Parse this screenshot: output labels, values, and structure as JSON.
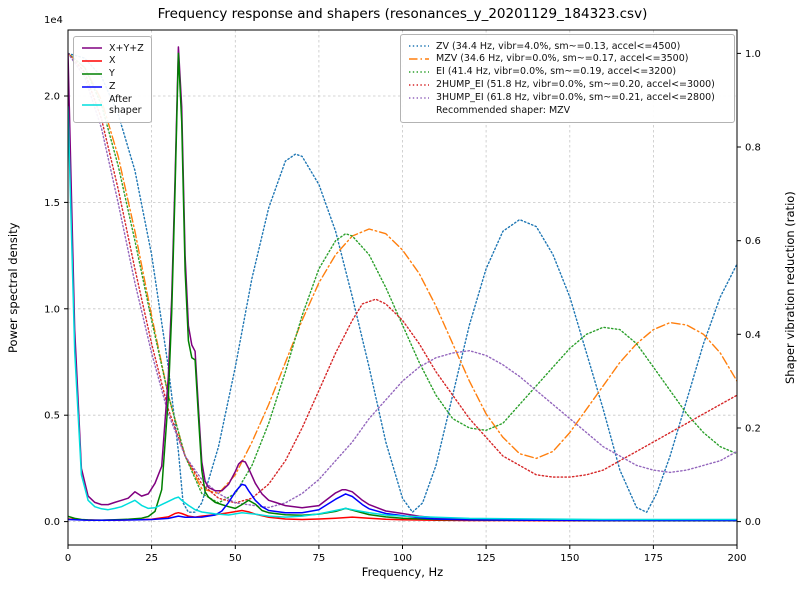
{
  "chart_data": {
    "type": "line",
    "title": "Frequency response and shapers (resonances_y_20201129_184323.csv)",
    "xlabel": "Frequency, Hz",
    "ylabel_left": "Power spectral density",
    "ylabel_right": "Shaper vibration reduction (ratio)",
    "offset_label": "1e4",
    "recommended_label": "Recommended shaper: MZV",
    "grid": true,
    "legend_positions": {
      "psd": "upper left",
      "shapers": "upper right"
    },
    "xlim": [
      0,
      200
    ],
    "ylim_left": [
      -1100,
      23100
    ],
    "ylim_right": [
      -0.05,
      1.05
    ],
    "x_ticks": [
      0,
      25,
      50,
      75,
      100,
      125,
      150,
      175,
      200
    ],
    "x_tick_labels": [
      "0",
      "25",
      "50",
      "75",
      "100",
      "125",
      "150",
      "175",
      "200"
    ],
    "y_ticks_left": [
      0,
      5000,
      10000,
      15000,
      20000
    ],
    "y_tick_labels_left": [
      "0.0",
      "0.5",
      "1.0",
      "1.5",
      "2.0"
    ],
    "y_ticks_right": [
      0,
      0.2,
      0.4,
      0.6,
      0.8,
      1.0
    ],
    "y_tick_labels_right": [
      "0.0",
      "0.2",
      "0.4",
      "0.6",
      "0.8",
      "1.0"
    ],
    "psd_series": [
      {
        "name": "X+Y+Z",
        "color": "#800080",
        "style": "solid",
        "x": [
          0,
          2,
          4,
          6,
          8,
          10,
          12,
          14,
          16,
          18,
          20,
          22,
          24,
          26,
          28,
          30,
          31,
          32,
          33,
          34,
          35,
          36,
          37,
          38,
          39,
          40,
          41,
          42,
          44,
          46,
          48,
          50,
          51,
          52,
          53,
          54,
          56,
          58,
          60,
          62,
          65,
          70,
          75,
          80,
          82,
          83,
          85,
          88,
          90,
          95,
          100,
          105,
          110,
          120,
          140,
          160,
          180,
          200
        ],
        "y": [
          22000,
          9000,
          2500,
          1200,
          900,
          800,
          800,
          900,
          1000,
          1100,
          1400,
          1200,
          1300,
          1800,
          2600,
          6800,
          10500,
          16000,
          22300,
          19500,
          12500,
          9200,
          8300,
          8000,
          5300,
          2800,
          1900,
          1600,
          1450,
          1450,
          1750,
          2350,
          2700,
          2850,
          2800,
          2500,
          1800,
          1300,
          1000,
          900,
          750,
          650,
          750,
          1350,
          1500,
          1500,
          1400,
          1000,
          800,
          500,
          380,
          250,
          180,
          120,
          90,
          70,
          60,
          60
        ]
      },
      {
        "name": "X",
        "color": "#ff0000",
        "style": "solid",
        "x": [
          0,
          5,
          10,
          15,
          20,
          25,
          30,
          32,
          33,
          34,
          36,
          38,
          40,
          44,
          48,
          50,
          52,
          54,
          56,
          60,
          65,
          70,
          75,
          80,
          85,
          90,
          95,
          100,
          110,
          120,
          140,
          160,
          180,
          200
        ],
        "y": [
          120,
          80,
          60,
          70,
          90,
          110,
          220,
          380,
          420,
          380,
          260,
          210,
          260,
          320,
          420,
          470,
          520,
          460,
          350,
          200,
          120,
          100,
          120,
          160,
          210,
          160,
          110,
          90,
          60,
          50,
          45,
          40,
          40,
          40
        ]
      },
      {
        "name": "Y",
        "color": "#008000",
        "style": "solid",
        "x": [
          0,
          2,
          4,
          6,
          8,
          10,
          14,
          18,
          22,
          24,
          26,
          28,
          30,
          31,
          32,
          33,
          34,
          35,
          36,
          37,
          38,
          39,
          40,
          41,
          42,
          44,
          46,
          48,
          50,
          52,
          54,
          56,
          58,
          60,
          65,
          70,
          75,
          80,
          83,
          85,
          90,
          95,
          100,
          110,
          120,
          140,
          160,
          180,
          200
        ],
        "y": [
          250,
          150,
          100,
          80,
          70,
          70,
          90,
          110,
          160,
          240,
          480,
          1500,
          5800,
          9800,
          15500,
          22000,
          18800,
          11800,
          8500,
          7700,
          7600,
          4900,
          2400,
          1400,
          1150,
          900,
          800,
          700,
          620,
          800,
          1000,
          820,
          520,
          420,
          320,
          300,
          350,
          480,
          620,
          540,
          330,
          220,
          160,
          100,
          80,
          60,
          50,
          45,
          45
        ]
      },
      {
        "name": "Z",
        "color": "#0000ff",
        "style": "solid",
        "x": [
          0,
          5,
          10,
          15,
          20,
          25,
          30,
          33,
          35,
          40,
          44,
          46,
          48,
          50,
          52,
          53,
          54,
          56,
          58,
          60,
          65,
          70,
          75,
          80,
          83,
          85,
          88,
          90,
          95,
          100,
          105,
          110,
          120,
          140,
          160,
          180,
          200
        ],
        "y": [
          100,
          70,
          60,
          70,
          80,
          100,
          150,
          260,
          200,
          210,
          310,
          500,
          900,
          1400,
          1750,
          1700,
          1450,
          1000,
          700,
          520,
          420,
          420,
          560,
          1050,
          1300,
          1180,
          800,
          600,
          380,
          280,
          180,
          120,
          80,
          60,
          50,
          50,
          50
        ]
      },
      {
        "name": "After shaper",
        "legend_label": "After\nshaper",
        "color": "#00dddd",
        "style": "solid",
        "x": [
          0,
          2,
          4,
          6,
          8,
          10,
          12,
          14,
          16,
          18,
          20,
          22,
          24,
          26,
          28,
          30,
          32,
          33,
          34,
          36,
          38,
          40,
          44,
          48,
          52,
          56,
          60,
          65,
          70,
          75,
          80,
          83,
          85,
          90,
          95,
          100,
          110,
          120,
          140,
          160,
          180,
          200
        ],
        "y": [
          19500,
          8000,
          2200,
          1000,
          700,
          600,
          560,
          620,
          700,
          850,
          1000,
          760,
          620,
          650,
          800,
          950,
          1100,
          1150,
          1000,
          760,
          560,
          450,
          360,
          310,
          420,
          350,
          260,
          210,
          260,
          360,
          520,
          620,
          560,
          420,
          310,
          260,
          200,
          150,
          120,
          100,
          100,
          100
        ]
      }
    ],
    "shaper_series": [
      {
        "name": "ZV (34.4 Hz, vibr=4.0%, sm~=0.13, accel<=4500)",
        "shaper": "ZV",
        "freq_hz": 34.4,
        "color": "#1f77b4",
        "style": "dotted",
        "x": [
          0,
          5,
          10,
          15,
          20,
          25,
          30,
          33,
          34.4,
          36,
          38,
          40,
          45,
          50,
          55,
          60,
          65,
          68,
          70,
          75,
          80,
          85,
          90,
          95,
          100,
          103,
          106,
          110,
          115,
          120,
          125,
          130,
          135,
          140,
          145,
          150,
          155,
          160,
          165,
          170,
          173,
          176,
          180,
          185,
          190,
          195,
          200
        ],
        "y": [
          1.0,
          0.99,
          0.95,
          0.87,
          0.75,
          0.57,
          0.33,
          0.15,
          0.04,
          0.02,
          0.02,
          0.04,
          0.16,
          0.33,
          0.52,
          0.67,
          0.77,
          0.785,
          0.78,
          0.72,
          0.62,
          0.48,
          0.33,
          0.17,
          0.05,
          0.02,
          0.04,
          0.12,
          0.27,
          0.42,
          0.54,
          0.62,
          0.645,
          0.63,
          0.57,
          0.48,
          0.36,
          0.24,
          0.11,
          0.03,
          0.02,
          0.06,
          0.14,
          0.26,
          0.38,
          0.48,
          0.55
        ]
      },
      {
        "name": "MZV (34.6 Hz, vibr=0.0%, sm~=0.17, accel<=3500)",
        "shaper": "MZV",
        "freq_hz": 34.6,
        "color": "#ff7f0e",
        "style": "dashdot",
        "x": [
          0,
          5,
          10,
          15,
          20,
          25,
          30,
          35,
          40,
          45,
          50,
          55,
          60,
          65,
          70,
          75,
          80,
          85,
          90,
          95,
          100,
          105,
          110,
          115,
          120,
          125,
          130,
          135,
          140,
          145,
          150,
          155,
          160,
          165,
          170,
          175,
          180,
          185,
          190,
          195,
          200
        ],
        "y": [
          1.0,
          0.97,
          0.9,
          0.78,
          0.62,
          0.44,
          0.27,
          0.14,
          0.07,
          0.06,
          0.1,
          0.17,
          0.25,
          0.34,
          0.43,
          0.51,
          0.57,
          0.61,
          0.625,
          0.615,
          0.58,
          0.53,
          0.46,
          0.38,
          0.3,
          0.23,
          0.18,
          0.145,
          0.135,
          0.15,
          0.19,
          0.24,
          0.29,
          0.34,
          0.38,
          0.41,
          0.425,
          0.42,
          0.4,
          0.36,
          0.3
        ]
      },
      {
        "name": "EI (41.4 Hz, vibr=0.0%, sm~=0.19, accel<=3200)",
        "shaper": "EI",
        "freq_hz": 41.4,
        "color": "#2ca02c",
        "style": "dotted",
        "x": [
          0,
          5,
          10,
          15,
          20,
          25,
          30,
          35,
          40,
          45,
          50,
          55,
          60,
          65,
          70,
          75,
          80,
          83,
          85,
          90,
          95,
          100,
          105,
          110,
          115,
          120,
          125,
          130,
          135,
          140,
          145,
          150,
          155,
          160,
          165,
          170,
          175,
          180,
          185,
          190,
          195,
          200
        ],
        "y": [
          1.0,
          0.97,
          0.89,
          0.76,
          0.6,
          0.43,
          0.27,
          0.14,
          0.06,
          0.04,
          0.06,
          0.12,
          0.21,
          0.32,
          0.44,
          0.54,
          0.6,
          0.615,
          0.61,
          0.57,
          0.5,
          0.42,
          0.34,
          0.27,
          0.22,
          0.2,
          0.195,
          0.21,
          0.25,
          0.29,
          0.33,
          0.37,
          0.4,
          0.415,
          0.41,
          0.38,
          0.33,
          0.28,
          0.23,
          0.19,
          0.16,
          0.145
        ]
      },
      {
        "name": "2HUMP_EI (51.8 Hz, vibr=0.0%, sm~=0.20, accel<=3000)",
        "shaper": "2HUMP_EI",
        "freq_hz": 51.8,
        "color": "#d62728",
        "style": "dotted",
        "x": [
          0,
          5,
          10,
          15,
          20,
          25,
          30,
          35,
          40,
          45,
          50,
          55,
          60,
          65,
          70,
          75,
          80,
          85,
          88,
          92,
          95,
          100,
          105,
          110,
          115,
          120,
          125,
          130,
          135,
          140,
          145,
          150,
          155,
          160,
          165,
          170,
          175,
          180,
          185,
          190,
          195,
          200
        ],
        "y": [
          1.0,
          0.96,
          0.86,
          0.71,
          0.54,
          0.38,
          0.24,
          0.14,
          0.08,
          0.05,
          0.04,
          0.05,
          0.08,
          0.13,
          0.2,
          0.28,
          0.36,
          0.43,
          0.465,
          0.475,
          0.465,
          0.43,
          0.38,
          0.32,
          0.27,
          0.22,
          0.18,
          0.14,
          0.12,
          0.1,
          0.095,
          0.095,
          0.1,
          0.11,
          0.13,
          0.15,
          0.17,
          0.19,
          0.21,
          0.23,
          0.25,
          0.27
        ]
      },
      {
        "name": "3HUMP_EI (61.8 Hz, vibr=0.0%, sm~=0.21, accel<=2800)",
        "shaper": "3HUMP_EI",
        "freq_hz": 61.8,
        "color": "#9467bd",
        "style": "dotted",
        "x": [
          0,
          5,
          10,
          15,
          20,
          25,
          30,
          35,
          40,
          45,
          50,
          55,
          60,
          65,
          70,
          75,
          80,
          85,
          90,
          95,
          100,
          105,
          110,
          115,
          120,
          125,
          130,
          135,
          140,
          145,
          150,
          155,
          160,
          165,
          170,
          175,
          180,
          185,
          190,
          195,
          200
        ],
        "y": [
          1.0,
          0.95,
          0.84,
          0.68,
          0.51,
          0.36,
          0.23,
          0.14,
          0.09,
          0.06,
          0.04,
          0.035,
          0.03,
          0.04,
          0.06,
          0.09,
          0.13,
          0.17,
          0.22,
          0.26,
          0.3,
          0.33,
          0.35,
          0.36,
          0.365,
          0.355,
          0.335,
          0.31,
          0.28,
          0.25,
          0.22,
          0.19,
          0.16,
          0.14,
          0.12,
          0.11,
          0.105,
          0.11,
          0.12,
          0.13,
          0.15
        ]
      }
    ]
  }
}
